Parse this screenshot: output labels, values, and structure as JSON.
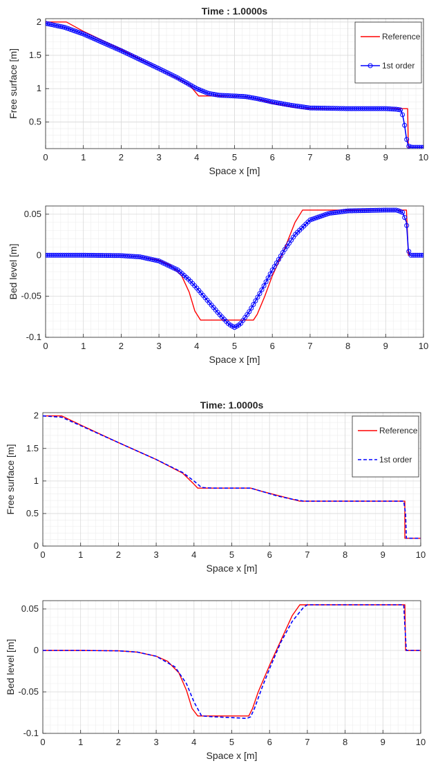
{
  "colors": {
    "reference": "#ff0000",
    "first_order": "#0000ff",
    "axis": "#262626",
    "grid_major": "#d9d9d9",
    "grid_minor": "#ececec"
  },
  "chart_data": [
    {
      "type": "line",
      "title": "Time : 1.0000s",
      "xlabel": "Space x [m]",
      "ylabel": "Free surface [m]",
      "xlim": [
        0,
        10
      ],
      "ylim": [
        0.1,
        2.05
      ],
      "xticks": [
        0,
        1,
        2,
        3,
        4,
        5,
        6,
        7,
        8,
        9,
        10
      ],
      "yticks": [
        0.5,
        1,
        1.5,
        2
      ],
      "grid": true,
      "legend": "top-right",
      "series": [
        {
          "name": "Reference",
          "style": "line",
          "x": [
            0,
            0.55,
            1.0,
            2.0,
            3.0,
            3.8,
            4.05,
            4.5,
            4.9,
            5.0,
            5.1,
            5.5,
            6.0,
            6.5,
            6.8,
            9.5,
            9.58,
            9.6,
            9.62,
            10.0
          ],
          "y": [
            2.0,
            2.0,
            1.86,
            1.59,
            1.3,
            1.06,
            0.89,
            0.89,
            0.89,
            0.885,
            0.89,
            0.86,
            0.78,
            0.73,
            0.7,
            0.7,
            0.7,
            0.12,
            0.12,
            0.12
          ]
        },
        {
          "name": "1st order",
          "style": "line-circle",
          "x": [
            0,
            0.5,
            1.0,
            2.0,
            3.0,
            3.5,
            4.0,
            4.3,
            4.6,
            5.0,
            5.3,
            5.6,
            6.0,
            6.5,
            7.0,
            8.0,
            9.0,
            9.3,
            9.4,
            9.45,
            9.5,
            9.55,
            9.6,
            9.65,
            9.7,
            10.0
          ],
          "y": [
            1.98,
            1.92,
            1.82,
            1.57,
            1.3,
            1.16,
            1.0,
            0.93,
            0.9,
            0.89,
            0.88,
            0.85,
            0.8,
            0.75,
            0.71,
            0.7,
            0.7,
            0.69,
            0.68,
            0.6,
            0.45,
            0.25,
            0.14,
            0.125,
            0.12,
            0.12
          ]
        }
      ]
    },
    {
      "type": "line",
      "title": "",
      "xlabel": "Space x [m]",
      "ylabel": "Bed level [m]",
      "xlim": [
        0,
        10
      ],
      "ylim": [
        -0.1,
        0.06
      ],
      "xticks": [
        0,
        1,
        2,
        3,
        4,
        5,
        6,
        7,
        8,
        9,
        10
      ],
      "yticks": [
        -0.1,
        -0.05,
        0,
        0.05
      ],
      "grid": true,
      "legend": "none",
      "series": [
        {
          "name": "Reference",
          "style": "line",
          "x": [
            0,
            1,
            2,
            2.5,
            3.0,
            3.3,
            3.6,
            3.8,
            3.95,
            4.1,
            4.5,
            5.0,
            5.5,
            5.6,
            5.8,
            6.0,
            6.3,
            6.6,
            6.8,
            9.55,
            9.6,
            10.0
          ],
          "y": [
            0,
            0,
            -0.0003,
            -0.002,
            -0.006,
            -0.012,
            -0.025,
            -0.045,
            -0.068,
            -0.079,
            -0.079,
            -0.079,
            -0.079,
            -0.072,
            -0.05,
            -0.025,
            0.005,
            0.04,
            0.055,
            0.055,
            0,
            0
          ]
        },
        {
          "name": "1st order",
          "style": "line-circle",
          "x": [
            0,
            1,
            2,
            2.5,
            3.0,
            3.5,
            3.8,
            4.0,
            4.3,
            4.6,
            4.85,
            5.0,
            5.15,
            5.4,
            5.7,
            6.0,
            6.3,
            6.6,
            7.0,
            7.5,
            8.0,
            9.0,
            9.3,
            9.45,
            9.55,
            9.6,
            9.65,
            10.0
          ],
          "y": [
            0,
            0,
            -0.0005,
            -0.002,
            -0.007,
            -0.018,
            -0.03,
            -0.04,
            -0.056,
            -0.072,
            -0.084,
            -0.088,
            -0.084,
            -0.068,
            -0.044,
            -0.018,
            0.005,
            0.025,
            0.043,
            0.051,
            0.054,
            0.055,
            0.055,
            0.052,
            0.04,
            0.006,
            0,
            0
          ]
        }
      ]
    },
    {
      "type": "line",
      "title": "Time: 1.0000s",
      "xlabel": "Space x [m]",
      "ylabel": "Free surface [m]",
      "xlim": [
        0,
        10
      ],
      "ylim": [
        0,
        2.05
      ],
      "xticks": [
        0,
        1,
        2,
        3,
        4,
        5,
        6,
        7,
        8,
        9,
        10
      ],
      "yticks": [
        0,
        0.5,
        1,
        1.5,
        2
      ],
      "grid": true,
      "legend": "top-right",
      "series": [
        {
          "name": "Reference",
          "style": "line",
          "x": [
            0,
            0.5,
            1.0,
            2.0,
            3.0,
            3.7,
            4.0,
            4.1,
            4.5,
            5.0,
            5.5,
            5.8,
            6.2,
            6.6,
            6.8,
            9.58,
            9.58,
            10.0
          ],
          "y": [
            2.0,
            2.0,
            1.86,
            1.59,
            1.33,
            1.12,
            0.95,
            0.89,
            0.89,
            0.89,
            0.89,
            0.84,
            0.78,
            0.72,
            0.69,
            0.69,
            0.12,
            0.12
          ]
        },
        {
          "name": "1st order",
          "style": "dashed",
          "x": [
            0,
            0.5,
            1.0,
            2.0,
            3.0,
            3.7,
            4.0,
            4.2,
            4.5,
            5.0,
            5.5,
            5.8,
            6.2,
            6.6,
            6.9,
            9.55,
            9.6,
            9.62,
            10.0
          ],
          "y": [
            2.0,
            1.98,
            1.85,
            1.59,
            1.33,
            1.13,
            1.0,
            0.9,
            0.89,
            0.89,
            0.89,
            0.84,
            0.77,
            0.72,
            0.69,
            0.69,
            0.5,
            0.12,
            0.12
          ]
        }
      ]
    },
    {
      "type": "line",
      "title": "",
      "xlabel": "Space x [m]",
      "ylabel": "Bed level [m]",
      "xlim": [
        0,
        10
      ],
      "ylim": [
        -0.1,
        0.06
      ],
      "xticks": [
        0,
        1,
        2,
        3,
        4,
        5,
        6,
        7,
        8,
        9,
        10
      ],
      "yticks": [
        -0.1,
        -0.05,
        0,
        0.05
      ],
      "grid": true,
      "legend": "none",
      "series": [
        {
          "name": "Reference",
          "style": "line",
          "x": [
            0,
            1,
            2,
            2.5,
            3.0,
            3.3,
            3.6,
            3.8,
            3.95,
            4.1,
            4.5,
            5.0,
            5.45,
            5.55,
            5.7,
            6.0,
            6.3,
            6.6,
            6.8,
            9.58,
            9.6,
            10.0
          ],
          "y": [
            0,
            0,
            -0.0005,
            -0.002,
            -0.007,
            -0.013,
            -0.027,
            -0.048,
            -0.07,
            -0.079,
            -0.079,
            -0.079,
            -0.079,
            -0.07,
            -0.05,
            -0.018,
            0.012,
            0.042,
            0.055,
            0.055,
            0,
            0
          ]
        },
        {
          "name": "1st order",
          "style": "dashed",
          "x": [
            0,
            1,
            2,
            2.5,
            3.0,
            3.5,
            3.8,
            4.0,
            4.2,
            4.5,
            5.0,
            5.4,
            5.5,
            5.6,
            5.8,
            6.0,
            6.3,
            6.6,
            6.9,
            7.0,
            9.55,
            9.58,
            9.62,
            10.0
          ],
          "y": [
            0,
            0,
            -0.0005,
            -0.002,
            -0.007,
            -0.02,
            -0.04,
            -0.062,
            -0.079,
            -0.08,
            -0.081,
            -0.082,
            -0.08,
            -0.07,
            -0.045,
            -0.022,
            0.01,
            0.035,
            0.052,
            0.055,
            0.055,
            0.03,
            0,
            0
          ]
        }
      ]
    }
  ]
}
